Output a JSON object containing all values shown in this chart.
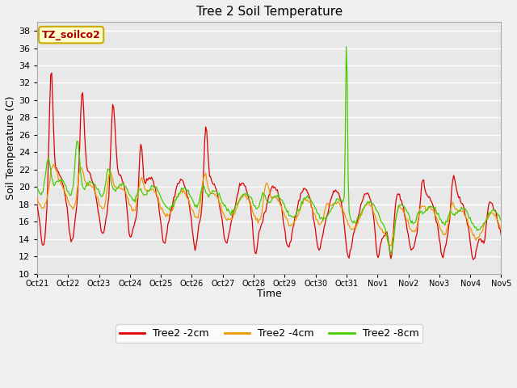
{
  "title": "Tree 2 Soil Temperature",
  "xlabel": "Time",
  "ylabel": "Soil Temperature (C)",
  "ylim": [
    10,
    39
  ],
  "yticks": [
    10,
    12,
    14,
    16,
    18,
    20,
    22,
    24,
    26,
    28,
    30,
    32,
    34,
    36,
    38
  ],
  "x_labels": [
    "Oct 21",
    "Oct 22",
    "Oct 23",
    "Oct 24",
    "Oct 25",
    "Oct 26",
    "Oct 27",
    "Oct 28",
    "Oct 29",
    "Oct 30",
    "Oct 31",
    "Nov 1",
    "Nov 2",
    "Nov 3",
    "Nov 4",
    "Nov 5"
  ],
  "annotation_text": "TZ_soilco2",
  "annotation_bg": "#ffffcc",
  "annotation_border": "#ccaa00",
  "line_2cm_color": "#dd0000",
  "line_4cm_color": "#ee9900",
  "line_8cm_color": "#44cc00",
  "legend_labels": [
    "Tree2 -2cm",
    "Tree2 -4cm",
    "Tree2 -8cm"
  ],
  "plot_bg_color": "#e8e8e8",
  "fig_bg_color": "#f0f0f0",
  "grid_color": "#ffffff",
  "title_fontsize": 11,
  "axis_label_fontsize": 9,
  "tick_fontsize": 8,
  "n_points": 480
}
